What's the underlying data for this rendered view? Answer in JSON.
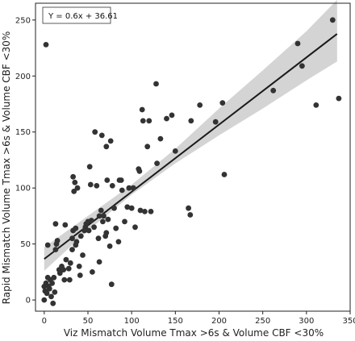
{
  "chart_data": {
    "type": "scatter",
    "xlabel": "Viz Mismatch Volume Tmax >6s & Volume CBF <30%",
    "ylabel": "Rapid Mismatch Volume Tmax >6s & Volume CBF <30%",
    "annotation": "Y = 0.6x + 36.61",
    "xlim": [
      -10,
      350
    ],
    "ylim": [
      -10,
      265
    ],
    "xticks": [
      0,
      50,
      100,
      150,
      200,
      250,
      300,
      350
    ],
    "yticks": [
      0,
      50,
      100,
      150,
      200,
      250
    ],
    "grid": false,
    "regression": {
      "slope": 0.6,
      "intercept": 36.61,
      "x_range": [
        0,
        335
      ]
    },
    "confidence_band": [
      {
        "x": 0,
        "lower": 26,
        "upper": 47
      },
      {
        "x": 50,
        "lower": 62,
        "upper": 75
      },
      {
        "x": 100,
        "lower": 94,
        "upper": 103
      },
      {
        "x": 150,
        "lower": 122,
        "upper": 135
      },
      {
        "x": 200,
        "lower": 147,
        "upper": 171
      },
      {
        "x": 250,
        "lower": 171,
        "upper": 205
      },
      {
        "x": 300,
        "lower": 196,
        "upper": 240
      },
      {
        "x": 335,
        "lower": 213,
        "upper": 268
      }
    ],
    "colors": {
      "points": "#333333",
      "line": "#1a1a1a",
      "band": "#cccccc"
    },
    "points": [
      [
        0,
        0
      ],
      [
        0,
        12
      ],
      [
        1,
        8
      ],
      [
        2,
        15
      ],
      [
        3,
        6
      ],
      [
        4,
        20
      ],
      [
        5,
        12
      ],
      [
        6,
        10
      ],
      [
        7,
        18
      ],
      [
        8,
        3
      ],
      [
        9,
        15
      ],
      [
        10,
        -3
      ],
      [
        11,
        20
      ],
      [
        12,
        7
      ],
      [
        2,
        228
      ],
      [
        4,
        49
      ],
      [
        13,
        45
      ],
      [
        14,
        50
      ],
      [
        13,
        68
      ],
      [
        15,
        53
      ],
      [
        17,
        27
      ],
      [
        18,
        24
      ],
      [
        20,
        30
      ],
      [
        22,
        27
      ],
      [
        23,
        18
      ],
      [
        24,
        67
      ],
      [
        25,
        36
      ],
      [
        28,
        28
      ],
      [
        29,
        18
      ],
      [
        30,
        33
      ],
      [
        32,
        45
      ],
      [
        32,
        55
      ],
      [
        33,
        62
      ],
      [
        34,
        97
      ],
      [
        33,
        110
      ],
      [
        35,
        105
      ],
      [
        36,
        49
      ],
      [
        36,
        64
      ],
      [
        37,
        52
      ],
      [
        38,
        100
      ],
      [
        40,
        30
      ],
      [
        41,
        22
      ],
      [
        42,
        57
      ],
      [
        44,
        40
      ],
      [
        46,
        62
      ],
      [
        47,
        65
      ],
      [
        48,
        68
      ],
      [
        50,
        70
      ],
      [
        51,
        62
      ],
      [
        52,
        119
      ],
      [
        53,
        103
      ],
      [
        54,
        71
      ],
      [
        55,
        25
      ],
      [
        57,
        65
      ],
      [
        58,
        150
      ],
      [
        60,
        102
      ],
      [
        62,
        55
      ],
      [
        63,
        34
      ],
      [
        63,
        75
      ],
      [
        65,
        80
      ],
      [
        66,
        147
      ],
      [
        67,
        70
      ],
      [
        68,
        75
      ],
      [
        70,
        57
      ],
      [
        71,
        60
      ],
      [
        71,
        137
      ],
      [
        72,
        107
      ],
      [
        73,
        72
      ],
      [
        75,
        48
      ],
      [
        76,
        142
      ],
      [
        77,
        14
      ],
      [
        78,
        102
      ],
      [
        80,
        82
      ],
      [
        82,
        64
      ],
      [
        85,
        52
      ],
      [
        86,
        107
      ],
      [
        88,
        107
      ],
      [
        89,
        98
      ],
      [
        92,
        70
      ],
      [
        95,
        83
      ],
      [
        97,
        100
      ],
      [
        100,
        82
      ],
      [
        102,
        100
      ],
      [
        104,
        65
      ],
      [
        108,
        117
      ],
      [
        109,
        115
      ],
      [
        110,
        80
      ],
      [
        112,
        170
      ],
      [
        113,
        160
      ],
      [
        115,
        79
      ],
      [
        118,
        137
      ],
      [
        120,
        160
      ],
      [
        122,
        79
      ],
      [
        128,
        193
      ],
      [
        129,
        122
      ],
      [
        133,
        144
      ],
      [
        140,
        162
      ],
      [
        146,
        165
      ],
      [
        150,
        133
      ],
      [
        165,
        82
      ],
      [
        167,
        76
      ],
      [
        168,
        160
      ],
      [
        178,
        174
      ],
      [
        196,
        159
      ],
      [
        204,
        176
      ],
      [
        206,
        112
      ],
      [
        262,
        187
      ],
      [
        290,
        229
      ],
      [
        295,
        209
      ],
      [
        311,
        174
      ],
      [
        330,
        250
      ],
      [
        337,
        180
      ]
    ]
  }
}
